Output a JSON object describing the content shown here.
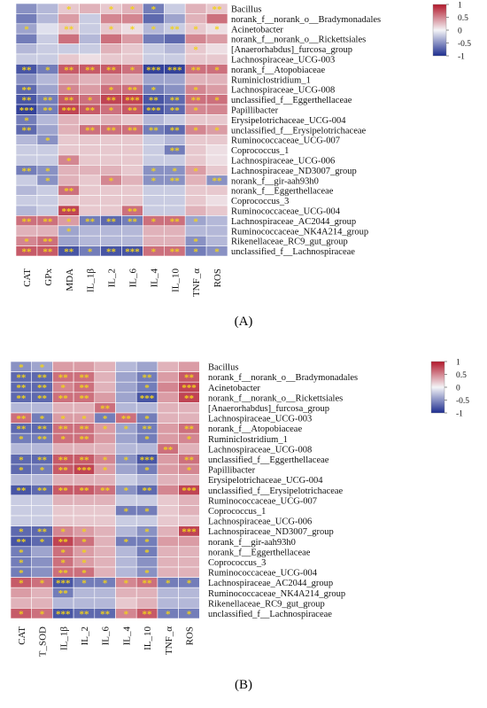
{
  "panels": [
    {
      "label": "(A)"
    },
    {
      "label": "(B)"
    }
  ],
  "colors": {
    "neg": "#1d2d8f",
    "mid": "#f4f4f7",
    "pos": "#b2182b",
    "star": "#f1d21c",
    "grid": "#ffffff"
  },
  "chart_data": [
    {
      "type": "heatmap",
      "panel": "(A)",
      "rows": [
        "Bacillus",
        "norank_f__norank_o__Bradymonadales",
        "Acinetobacter",
        "norank_f__norank_o__Rickettsiales",
        "[Anaerorhabdus]_furcosa_group",
        "Lachnospiraceae_UCG-003",
        "norank_f__Atopobiaceae",
        "Ruminiclostridium_1",
        "Lachnospiraceae_UCG-008",
        "unclassified_f__Eggerthellaceae",
        "Papillibacter",
        "Erysipelotrichaceae_UCG-004",
        "unclassified_f__Erysipelotrichaceae",
        "Ruminococcaceae_UCG-007",
        "Coprococcus_1",
        "Lachnospiraceae_UCG-006",
        "Lachnospiraceae_ND3007_group",
        "norank_f__gir-aah93h0",
        "norank_f__Eggerthellaceae",
        "Coprococcus_3",
        "Ruminococcaceae_UCG-004",
        "Lachnospiraceae_AC2044_group",
        "Ruminococcaceae_NK4A214_group",
        "Rikenellaceae_RC9_gut_group",
        "unclassified_f__Lachnospiraceae"
      ],
      "columns": [
        "CAT",
        "GPx",
        "MDA",
        "IL_1β",
        "IL_2",
        "IL_6",
        "IL_4",
        "IL_10",
        "TNF_α",
        "ROS"
      ],
      "values": [
        [
          -0.5,
          -0.3,
          0.2,
          0.3,
          0.2,
          0.3,
          -0.6,
          -0.2,
          0.3,
          0.2
        ],
        [
          -0.6,
          -0.3,
          0.4,
          -0.2,
          0.5,
          0.5,
          -0.7,
          -0.4,
          0.3,
          0.6
        ],
        [
          -0.4,
          -0.1,
          0.2,
          -0.2,
          0.2,
          0.1,
          -0.3,
          -0.2,
          0.2,
          0.1
        ],
        [
          -0.6,
          -0.2,
          0.6,
          -0.3,
          0.6,
          0.4,
          -0.6,
          -0.7,
          0.5,
          0.4
        ],
        [
          -0.3,
          -0.2,
          -0.2,
          -0.2,
          0.3,
          0.2,
          -0.2,
          -0.3,
          0.2,
          0.1
        ],
        [
          -0.2,
          -0.2,
          0.2,
          0.1,
          0.2,
          0.2,
          -0.2,
          -0.2,
          0.2,
          0.2
        ],
        [
          -0.8,
          -0.6,
          0.7,
          0.7,
          0.7,
          0.6,
          -0.9,
          -0.9,
          0.6,
          0.6
        ],
        [
          -0.5,
          -0.3,
          0.4,
          0.3,
          0.4,
          0.3,
          -0.4,
          -0.4,
          0.3,
          0.3
        ],
        [
          -0.7,
          -0.4,
          0.5,
          0.4,
          0.6,
          0.6,
          -0.6,
          -0.5,
          0.5,
          0.4
        ],
        [
          -0.8,
          -0.6,
          0.7,
          0.6,
          0.8,
          0.8,
          -0.8,
          -0.7,
          0.6,
          0.6
        ],
        [
          -0.9,
          -0.6,
          0.8,
          0.7,
          0.6,
          0.7,
          -0.8,
          -0.7,
          0.5,
          0.5
        ],
        [
          -0.6,
          -0.3,
          0.3,
          0.2,
          0.3,
          0.2,
          -0.3,
          -0.2,
          0.2,
          0.2
        ],
        [
          -0.7,
          -0.4,
          0.3,
          0.6,
          0.6,
          0.6,
          -0.6,
          -0.7,
          0.5,
          0.4
        ],
        [
          -0.3,
          -0.5,
          0.2,
          0.2,
          0.2,
          0.2,
          -0.2,
          -0.3,
          0.2,
          0.2
        ],
        [
          -0.2,
          -0.2,
          0.2,
          0.2,
          0.2,
          0.2,
          -0.2,
          -0.6,
          0.2,
          0.1
        ],
        [
          -0.2,
          -0.2,
          0.5,
          0.2,
          0.2,
          0.2,
          -0.2,
          -0.2,
          0.2,
          0.1
        ],
        [
          -0.6,
          -0.5,
          0.3,
          0.3,
          0.3,
          0.2,
          -0.5,
          -0.5,
          0.4,
          0.2
        ],
        [
          -0.2,
          -0.5,
          0.3,
          0.2,
          0.5,
          0.3,
          -0.5,
          -0.5,
          0.3,
          -0.5
        ],
        [
          -0.3,
          -0.2,
          0.6,
          0.2,
          0.2,
          0.2,
          -0.2,
          -0.2,
          0.2,
          0.2
        ],
        [
          -0.2,
          -0.2,
          0.2,
          0.2,
          0.2,
          0.2,
          -0.2,
          -0.2,
          0.2,
          0.1
        ],
        [
          -0.3,
          -0.2,
          0.8,
          0.2,
          0.2,
          0.6,
          -0.2,
          -0.2,
          0.3,
          0.2
        ],
        [
          0.6,
          0.6,
          0.4,
          -0.6,
          -0.7,
          -0.6,
          0.6,
          0.6,
          -0.4,
          -0.3
        ],
        [
          0.3,
          0.3,
          -0.4,
          -0.3,
          -0.3,
          -0.3,
          0.3,
          0.3,
          -0.3,
          -0.3
        ],
        [
          0.5,
          0.6,
          -0.4,
          -0.3,
          -0.3,
          -0.3,
          0.3,
          0.3,
          -0.5,
          -0.3
        ],
        [
          0.7,
          0.7,
          -0.8,
          -0.6,
          -0.8,
          -0.8,
          0.6,
          0.6,
          -0.6,
          -0.5
        ]
      ],
      "significance": [
        [
          "",
          "",
          "*",
          "",
          "*",
          "*",
          "*",
          "",
          "",
          "**"
        ],
        [
          "",
          "",
          "",
          "",
          "",
          "",
          "",
          "",
          "",
          ""
        ],
        [
          "*",
          "",
          "**",
          "",
          "*",
          "*",
          "*",
          "**",
          "*",
          "*"
        ],
        [
          "",
          "",
          "",
          "",
          "",
          "",
          "",
          "",
          "",
          ""
        ],
        [
          "",
          "",
          "",
          "",
          "",
          "",
          "",
          "",
          "*",
          ""
        ],
        [
          "",
          "",
          "",
          "",
          "",
          "",
          "",
          "",
          "",
          ""
        ],
        [
          "**",
          "*",
          "**",
          "**",
          "**",
          "*",
          "***",
          "***",
          "**",
          "*"
        ],
        [
          "",
          "",
          "",
          "",
          "",
          "",
          "",
          "",
          "",
          ""
        ],
        [
          "**",
          "",
          "*",
          "",
          "*",
          "**",
          "*",
          "",
          "*",
          ""
        ],
        [
          "**",
          "**",
          "**",
          "*",
          "**",
          "***",
          "**",
          "**",
          "**",
          "*"
        ],
        [
          "***",
          "**",
          "***",
          "**",
          "*",
          "**",
          "***",
          "**",
          "*",
          ""
        ],
        [
          "*",
          "",
          "",
          "",
          "",
          "",
          "",
          "",
          "",
          ""
        ],
        [
          "**",
          "",
          "",
          "**",
          "**",
          "**",
          "**",
          "**",
          "*",
          "*"
        ],
        [
          "",
          "*",
          "",
          "",
          "",
          "",
          "",
          "",
          "",
          ""
        ],
        [
          "",
          "",
          "",
          "",
          "",
          "",
          "",
          "**",
          "",
          ""
        ],
        [
          "",
          "",
          "*",
          "",
          "",
          "",
          "",
          "",
          "",
          ""
        ],
        [
          "**",
          "*",
          "",
          "",
          "",
          "",
          "*",
          "*",
          "*",
          ""
        ],
        [
          "",
          "*",
          "",
          "",
          "*",
          "",
          "*",
          "**",
          "",
          "**"
        ],
        [
          "",
          "",
          "**",
          "",
          "",
          "",
          "",
          "",
          "",
          ""
        ],
        [
          "",
          "",
          "",
          "",
          "",
          "",
          "",
          "",
          "",
          ""
        ],
        [
          "",
          "",
          "***",
          "",
          "",
          "**",
          "",
          "",
          "",
          ""
        ],
        [
          "**",
          "**",
          "*",
          "**",
          "**",
          "**",
          "*",
          "**",
          "*",
          ""
        ],
        [
          "",
          "",
          "*",
          "",
          "",
          "",
          "",
          "",
          "",
          ""
        ],
        [
          "*",
          "**",
          "",
          "",
          "",
          "",
          "",
          "",
          "*",
          ""
        ],
        [
          "**",
          "**",
          "**",
          "*",
          "**",
          "***",
          "*",
          "**",
          "*",
          "*"
        ]
      ],
      "legend": {
        "ticks": [
          1,
          0.5,
          0,
          -0.5,
          -1
        ],
        "tick_labels": [
          "1",
          "0.5",
          "0",
          "-0.5",
          "-1"
        ],
        "placement": "top-right"
      }
    },
    {
      "type": "heatmap",
      "panel": "(B)",
      "rows": [
        "Bacillus",
        "norank_f__norank_o__Bradymonadales",
        "Acinetobacter",
        "norank_f__norank_o__Rickettsiales",
        "[Anaerorhabdus]_furcosa_group",
        "Lachnospiraceae_UCG-003",
        "norank_f__Atopobiaceae",
        "Ruminiclostridium_1",
        "Lachnospiraceae_UCG-008",
        "unclassified_f__Eggerthellaceae",
        "Papillibacter",
        "Erysipelotrichaceae_UCG-004",
        "unclassified_f__Erysipelotrichaceae",
        "Ruminococcaceae_UCG-007",
        "Coprococcus_1",
        "Lachnospiraceae_UCG-006",
        "Lachnospiraceae_ND3007_group",
        "norank_f__gir-aah93h0",
        "norank_f__Eggerthellaceae",
        "Coprococcus_3",
        "Ruminococcaceae_UCG-004",
        "Lachnospiraceae_AC2044_group",
        "Ruminococcaceae_NK4A214_group",
        "Rikenellaceae_RC9_gut_group",
        "unclassified_f__Lachnospiraceae"
      ],
      "columns": [
        "CAT",
        "T_SOD",
        "IL_1β",
        "IL_2",
        "IL_6",
        "IL_4",
        "IL_10",
        "TNF_α",
        "ROS"
      ],
      "values": [
        [
          -0.5,
          -0.4,
          0.4,
          0.4,
          0.3,
          -0.3,
          -0.4,
          0.3,
          0.4
        ],
        [
          -0.7,
          -0.7,
          0.6,
          0.6,
          0.3,
          -0.4,
          -0.6,
          0.4,
          0.7
        ],
        [
          -0.7,
          -0.7,
          0.5,
          0.6,
          0.3,
          -0.4,
          -0.6,
          0.5,
          0.8
        ],
        [
          -0.7,
          -0.7,
          0.6,
          0.6,
          0.4,
          -0.4,
          -0.8,
          0.4,
          0.8
        ],
        [
          -0.3,
          -0.3,
          0.3,
          0.3,
          0.6,
          -0.3,
          -0.3,
          0.3,
          0.3
        ],
        [
          0.6,
          -0.6,
          0.4,
          0.4,
          -0.6,
          0.6,
          -0.6,
          0.3,
          0.3
        ],
        [
          -0.7,
          -0.7,
          0.6,
          0.6,
          0.4,
          -0.4,
          -0.6,
          0.4,
          0.6
        ],
        [
          -0.6,
          -0.6,
          0.6,
          0.6,
          0.4,
          -0.4,
          -0.6,
          0.4,
          0.5
        ],
        [
          -0.3,
          -0.3,
          0.3,
          0.3,
          0.3,
          -0.3,
          -0.3,
          0.6,
          0.3
        ],
        [
          -0.7,
          -0.7,
          0.7,
          0.7,
          0.5,
          -0.5,
          -0.8,
          0.4,
          0.6
        ],
        [
          -0.7,
          -0.6,
          0.7,
          0.8,
          0.4,
          -0.4,
          -0.6,
          0.4,
          0.5
        ],
        [
          -0.3,
          -0.3,
          0.3,
          0.3,
          0.3,
          -0.2,
          -0.3,
          0.3,
          0.3
        ],
        [
          -0.8,
          -0.7,
          0.7,
          0.7,
          0.6,
          -0.5,
          -0.7,
          0.5,
          0.8
        ],
        [
          -0.2,
          -0.2,
          0.3,
          0.3,
          0.3,
          -0.2,
          -0.2,
          0.2,
          0.3
        ],
        [
          -0.2,
          -0.2,
          0.2,
          0.2,
          0.2,
          -0.6,
          -0.6,
          0.2,
          0.3
        ],
        [
          -0.2,
          -0.2,
          0.2,
          0.2,
          0.2,
          -0.2,
          -0.2,
          0.2,
          0.2
        ],
        [
          -0.7,
          -0.7,
          0.5,
          0.4,
          0.3,
          -0.3,
          -0.5,
          0.3,
          0.8
        ],
        [
          -0.8,
          -0.7,
          0.8,
          0.6,
          0.3,
          -0.6,
          -0.6,
          0.4,
          0.4
        ],
        [
          -0.6,
          -0.4,
          0.6,
          0.4,
          0.3,
          -0.3,
          -0.6,
          0.3,
          0.3
        ],
        [
          -0.6,
          -0.5,
          0.6,
          0.4,
          0.3,
          -0.3,
          -0.5,
          0.3,
          0.3
        ],
        [
          -0.6,
          -0.5,
          0.6,
          0.6,
          0.3,
          -0.3,
          -0.5,
          0.3,
          0.3
        ],
        [
          0.7,
          0.6,
          -0.8,
          -0.6,
          -0.6,
          0.5,
          0.6,
          -0.6,
          -0.6
        ],
        [
          0.4,
          0.3,
          -0.6,
          -0.3,
          -0.3,
          0.3,
          0.3,
          -0.3,
          -0.3
        ],
        [
          0.3,
          0.3,
          -0.3,
          -0.3,
          -0.3,
          0.2,
          0.3,
          -0.3,
          -0.3
        ],
        [
          0.7,
          0.6,
          -0.8,
          -0.7,
          -0.7,
          0.5,
          0.7,
          -0.6,
          -0.6
        ]
      ],
      "significance": [
        [
          "*",
          "*",
          "",
          "",
          "",
          "",
          "",
          "",
          ""
        ],
        [
          "**",
          "**",
          "**",
          "**",
          "",
          "",
          "**",
          "",
          "**"
        ],
        [
          "**",
          "**",
          "*",
          "**",
          "",
          "",
          "*",
          "",
          "***"
        ],
        [
          "**",
          "**",
          "**",
          "**",
          "",
          "",
          "***",
          "",
          "**"
        ],
        [
          "",
          "",
          "",
          "",
          "**",
          "",
          "",
          "",
          ""
        ],
        [
          "**",
          "*",
          "*",
          "*",
          "*",
          "**",
          "*",
          "",
          ""
        ],
        [
          "**",
          "**",
          "**",
          "**",
          "*",
          "*",
          "**",
          "",
          "**"
        ],
        [
          "*",
          "**",
          "*",
          "**",
          "",
          "",
          "*",
          "",
          "*"
        ],
        [
          "",
          "",
          "",
          "",
          "",
          "",
          "",
          "**",
          ""
        ],
        [
          "*",
          "**",
          "**",
          "**",
          "*",
          "*",
          "***",
          "",
          "**"
        ],
        [
          "*",
          "*",
          "**",
          "***",
          "*",
          "",
          "*",
          "",
          "*"
        ],
        [
          "",
          "",
          "",
          "",
          "",
          "",
          "",
          "",
          ""
        ],
        [
          "**",
          "**",
          "**",
          "**",
          "**",
          "*",
          "**",
          "",
          "***"
        ],
        [
          "",
          "",
          "",
          "",
          "",
          "",
          "",
          "",
          ""
        ],
        [
          "",
          "",
          "",
          "",
          "",
          "*",
          "*",
          "",
          ""
        ],
        [
          "",
          "",
          "",
          "",
          "",
          "",
          "",
          "",
          ""
        ],
        [
          "*",
          "**",
          "*",
          "*",
          "",
          "",
          "*",
          "",
          "***"
        ],
        [
          "**",
          "*",
          "**",
          "*",
          "",
          "*",
          "*",
          "",
          ""
        ],
        [
          "*",
          "",
          "*",
          "*",
          "",
          "",
          "*",
          "",
          ""
        ],
        [
          "*",
          "",
          "*",
          "*",
          "",
          "",
          "",
          "",
          ""
        ],
        [
          "*",
          "",
          "**",
          "*",
          "",
          "",
          "*",
          "",
          ""
        ],
        [
          "*",
          "*",
          "***",
          "*",
          "*",
          "*",
          "**",
          "*",
          "*"
        ],
        [
          "",
          "",
          "**",
          "",
          "",
          "",
          "",
          "",
          ""
        ],
        [
          "",
          "",
          "",
          "",
          "",
          "",
          "",
          "",
          ""
        ],
        [
          "*",
          "*",
          "***",
          "**",
          "**",
          "*",
          "**",
          "*",
          "*"
        ]
      ],
      "legend": {
        "ticks": [
          1,
          0.5,
          0,
          -0.5,
          -1
        ],
        "tick_labels": [
          "1",
          "0.5",
          "0",
          "-0.5",
          "-1"
        ],
        "placement": "top-right"
      }
    }
  ]
}
